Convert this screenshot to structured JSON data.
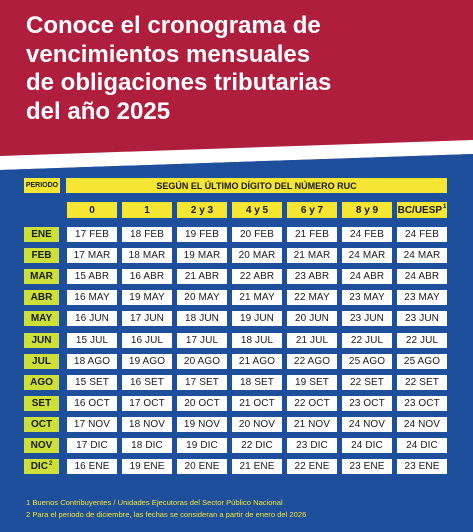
{
  "header": {
    "title": "Conoce el cronograma de\nvencimientos mensuales\nde obligaciones tributarias\ndel año 2025"
  },
  "table": {
    "periodo_label": "PERIODO",
    "digit_header": "SEGÚN EL ÚLTIMO DÍGITO DEL NÚMERO RUC",
    "columns": [
      {
        "label": "0",
        "sup": ""
      },
      {
        "label": "1",
        "sup": ""
      },
      {
        "label": "2 y 3",
        "sup": ""
      },
      {
        "label": "4 y 5",
        "sup": ""
      },
      {
        "label": "6 y 7",
        "sup": ""
      },
      {
        "label": "8 y 9",
        "sup": ""
      },
      {
        "label": "BC/UESP",
        "sup": "1"
      }
    ],
    "rows": [
      {
        "month": "ENE",
        "sup": "",
        "dates": [
          "17 FEB",
          "18 FEB",
          "19 FEB",
          "20 FEB",
          "21 FEB",
          "24 FEB",
          "24 FEB"
        ]
      },
      {
        "month": "FEB",
        "sup": "",
        "dates": [
          "17 MAR",
          "18 MAR",
          "19 MAR",
          "20 MAR",
          "21 MAR",
          "24 MAR",
          "24 MAR"
        ]
      },
      {
        "month": "MAR",
        "sup": "",
        "dates": [
          "15 ABR",
          "16 ABR",
          "21 ABR",
          "22 ABR",
          "23 ABR",
          "24 ABR",
          "24 ABR"
        ]
      },
      {
        "month": "ABR",
        "sup": "",
        "dates": [
          "16 MAY",
          "19 MAY",
          "20 MAY",
          "21 MAY",
          "22 MAY",
          "23 MAY",
          "23 MAY"
        ]
      },
      {
        "month": "MAY",
        "sup": "",
        "dates": [
          "16 JUN",
          "17 JUN",
          "18 JUN",
          "19 JUN",
          "20 JUN",
          "23 JUN",
          "23 JUN"
        ]
      },
      {
        "month": "JUN",
        "sup": "",
        "dates": [
          "15 JUL",
          "16 JUL",
          "17 JUL",
          "18 JUL",
          "21 JUL",
          "22 JUL",
          "22 JUL"
        ]
      },
      {
        "month": "JUL",
        "sup": "",
        "dates": [
          "18 AGO",
          "19 AGO",
          "20 AGO",
          "21 AGO",
          "22 AGO",
          "25 AGO",
          "25 AGO"
        ]
      },
      {
        "month": "AGO",
        "sup": "",
        "dates": [
          "15 SET",
          "16 SET",
          "17 SET",
          "18 SET",
          "19 SET",
          "22 SET",
          "22 SET"
        ]
      },
      {
        "month": "SET",
        "sup": "",
        "dates": [
          "16 OCT",
          "17 OCT",
          "20 OCT",
          "21 OCT",
          "22 OCT",
          "23 OCT",
          "23 OCT"
        ]
      },
      {
        "month": "OCT",
        "sup": "",
        "dates": [
          "17 NOV",
          "18 NOV",
          "19 NOV",
          "20 NOV",
          "21 NOV",
          "24 NOV",
          "24 NOV"
        ]
      },
      {
        "month": "NOV",
        "sup": "",
        "dates": [
          "17 DIC",
          "18 DIC",
          "19 DIC",
          "22 DIC",
          "23 DIC",
          "24 DIC",
          "24 DIC"
        ]
      },
      {
        "month": "DIC",
        "sup": "2",
        "dates": [
          "16 ENE",
          "19 ENE",
          "20 ENE",
          "21 ENE",
          "22 ENE",
          "23 ENE",
          "23 ENE"
        ]
      }
    ]
  },
  "footnotes": [
    "1 Buenos Contribuyentes / Unidades Ejecutoras del Sector Público Nacional",
    "2 Para el periodo de diciembre, las fechas se consideran a partir de enero del 2026"
  ],
  "colors": {
    "header_red": "#b01e3d",
    "background_blue": "#1e4f9c",
    "header_yellow": "#f4e632",
    "month_lime": "#cde03a",
    "cell_white": "#ffffff",
    "footnote_yellow": "#f4e632"
  }
}
